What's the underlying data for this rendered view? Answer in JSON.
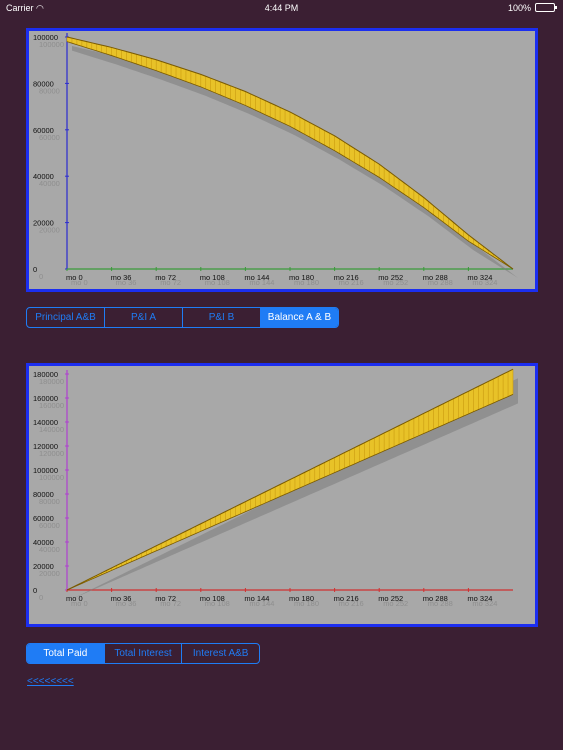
{
  "status_bar": {
    "carrier": "Carrier",
    "time": "4:44 PM",
    "battery": "100%",
    "wifi_icon": "wifi-icon",
    "battery_icon": "battery-icon"
  },
  "segmented_top": {
    "items": [
      "Principal A&B",
      "P&I A",
      "P&I B",
      "Balance A & B"
    ],
    "selected": 3
  },
  "segmented_bottom": {
    "items": [
      "Total Paid",
      "Total Interest",
      "Interest A&B"
    ],
    "selected": 0
  },
  "back_link": "<<<<<<<<",
  "colors": {
    "background": "#3b1f33",
    "chart_border": "#1b2ef0",
    "plot_bg": "#a8a8a8",
    "band_fill": "#e8c228",
    "band_line": "#7a5a00",
    "accent": "#1f7cf5",
    "chart1_axis_y": "#2b2bd0",
    "chart1_axis_x": "#3a9a3a",
    "chart2_axis_y": "#b040d0",
    "chart2_axis_x": "#d03030"
  },
  "chart_data": [
    {
      "type": "area",
      "title": "",
      "xlabel": "",
      "ylabel": "",
      "x_tick_labels": [
        "mo 0",
        "mo 36",
        "mo 72",
        "mo 108",
        "mo 144",
        "mo 180",
        "mo 216",
        "mo 252",
        "mo 288",
        "mo 324"
      ],
      "y_tick_labels": [
        "0",
        "20000",
        "40000",
        "60000",
        "80000",
        "100000"
      ],
      "xlim": [
        0,
        360
      ],
      "ylim": [
        0,
        100000
      ],
      "grid": false,
      "series": [
        {
          "x": [
            0,
            36,
            72,
            108,
            144,
            180,
            216,
            252,
            288,
            324,
            360
          ],
          "values": [
            100000,
            95500,
            90200,
            83900,
            76500,
            67700,
            57400,
            45200,
            30800,
            14700,
            0
          ]
        },
        {
          "x": [
            0,
            36,
            72,
            108,
            144,
            180,
            216,
            252,
            288,
            324,
            360
          ],
          "values": [
            98000,
            92000,
            85500,
            78500,
            70500,
            61500,
            51000,
            39500,
            26500,
            12000,
            0
          ]
        }
      ]
    },
    {
      "type": "area",
      "title": "",
      "xlabel": "",
      "ylabel": "",
      "x_tick_labels": [
        "mo 0",
        "mo 36",
        "mo 72",
        "mo 108",
        "mo 144",
        "mo 180",
        "mo 216",
        "mo 252",
        "mo 288",
        "mo 324"
      ],
      "y_tick_labels": [
        "0",
        "20000",
        "40000",
        "60000",
        "80000",
        "100000",
        "120000",
        "140000",
        "160000",
        "180000"
      ],
      "xlim": [
        0,
        360
      ],
      "ylim": [
        0,
        180000
      ],
      "grid": false,
      "series": [
        {
          "x": [
            0,
            360
          ],
          "values": [
            0,
            184000
          ]
        },
        {
          "x": [
            0,
            360
          ],
          "values": [
            0,
            163000
          ]
        }
      ]
    }
  ]
}
